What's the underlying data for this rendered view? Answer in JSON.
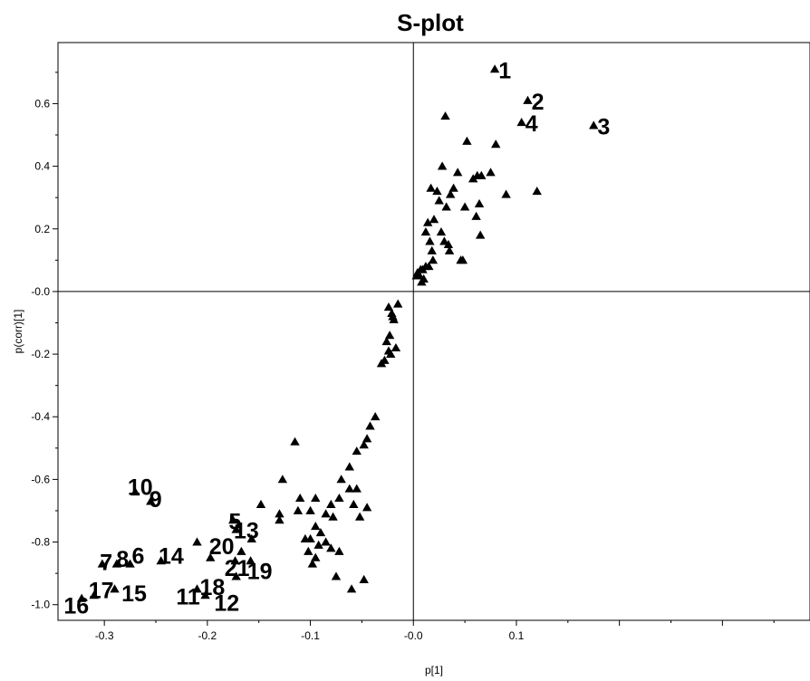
{
  "chart_data": {
    "type": "scatter",
    "title": "S-plot",
    "xlabel": "p[1]",
    "ylabel": "p(corr)[1]",
    "xlim": [
      -0.345,
      0.385
    ],
    "ylim": [
      -1.05,
      0.795
    ],
    "x_ticks": [
      -0.3,
      -0.2,
      -0.1,
      0.0,
      0.1
    ],
    "x_tick_labels": [
      "-0.3",
      "-0.2",
      "-0.1",
      "-0.0",
      "0.1"
    ],
    "y_ticks": [
      0.6,
      0.4,
      0.2,
      0.0,
      -0.2,
      -0.4,
      -0.6,
      -0.8,
      -1.0
    ],
    "y_tick_labels": [
      "0.6",
      "0.4",
      "0.2",
      "-0.0",
      "-0.2",
      "-0.4",
      "-0.6",
      "-0.8",
      "-1.0"
    ],
    "marker": "triangle",
    "marker_color": "#000000",
    "reference_lines": {
      "x": 0.0,
      "y": 0.0
    },
    "grid": false,
    "series": [
      {
        "points": [
          [
            0.079,
            0.71
          ],
          [
            0.111,
            0.61
          ],
          [
            0.175,
            0.53
          ],
          [
            0.105,
            0.54
          ],
          [
            0.12,
            0.32
          ],
          [
            0.09,
            0.31
          ],
          [
            0.08,
            0.47
          ],
          [
            0.052,
            0.48
          ],
          [
            0.075,
            0.38
          ],
          [
            0.062,
            0.37
          ],
          [
            0.066,
            0.37
          ],
          [
            0.064,
            0.28
          ],
          [
            0.065,
            0.18
          ],
          [
            0.061,
            0.24
          ],
          [
            0.058,
            0.36
          ],
          [
            0.05,
            0.27
          ],
          [
            0.043,
            0.38
          ],
          [
            0.031,
            0.56
          ],
          [
            0.028,
            0.4
          ],
          [
            0.039,
            0.33
          ],
          [
            0.023,
            0.32
          ],
          [
            0.036,
            0.31
          ],
          [
            0.025,
            0.29
          ],
          [
            0.032,
            0.27
          ],
          [
            0.017,
            0.33
          ],
          [
            0.02,
            0.23
          ],
          [
            0.014,
            0.22
          ],
          [
            0.012,
            0.19
          ],
          [
            0.016,
            0.16
          ],
          [
            0.018,
            0.13
          ],
          [
            0.019,
            0.1
          ],
          [
            0.015,
            0.08
          ],
          [
            0.012,
            0.08
          ],
          [
            0.027,
            0.19
          ],
          [
            0.03,
            0.16
          ],
          [
            0.034,
            0.15
          ],
          [
            0.035,
            0.13
          ],
          [
            0.046,
            0.1
          ],
          [
            0.048,
            0.1
          ],
          [
            0.009,
            0.07
          ],
          [
            0.007,
            0.07
          ],
          [
            0.006,
            0.05
          ],
          [
            0.01,
            0.04
          ],
          [
            0.004,
            0.06
          ],
          [
            0.003,
            0.05
          ],
          [
            0.008,
            0.03
          ],
          [
            -0.015,
            -0.04
          ],
          [
            -0.024,
            -0.05
          ],
          [
            -0.021,
            -0.07
          ],
          [
            -0.019,
            -0.09
          ],
          [
            -0.02,
            -0.08
          ],
          [
            -0.023,
            -0.14
          ],
          [
            -0.026,
            -0.16
          ],
          [
            -0.024,
            -0.19
          ],
          [
            -0.028,
            -0.22
          ],
          [
            -0.031,
            -0.23
          ],
          [
            -0.017,
            -0.18
          ],
          [
            -0.022,
            -0.2
          ],
          [
            -0.037,
            -0.4
          ],
          [
            -0.042,
            -0.43
          ],
          [
            -0.045,
            -0.47
          ],
          [
            -0.048,
            -0.49
          ],
          [
            -0.055,
            -0.51
          ],
          [
            -0.062,
            -0.56
          ],
          [
            -0.07,
            -0.6
          ],
          [
            -0.062,
            -0.63
          ],
          [
            -0.055,
            -0.63
          ],
          [
            -0.058,
            -0.68
          ],
          [
            -0.052,
            -0.72
          ],
          [
            -0.045,
            -0.69
          ],
          [
            -0.072,
            -0.66
          ],
          [
            -0.08,
            -0.68
          ],
          [
            -0.085,
            -0.71
          ],
          [
            -0.078,
            -0.72
          ],
          [
            -0.095,
            -0.66
          ],
          [
            -0.1,
            -0.7
          ],
          [
            -0.095,
            -0.75
          ],
          [
            -0.09,
            -0.77
          ],
          [
            -0.092,
            -0.81
          ],
          [
            -0.085,
            -0.8
          ],
          [
            -0.1,
            -0.79
          ],
          [
            -0.102,
            -0.83
          ],
          [
            -0.095,
            -0.85
          ],
          [
            -0.11,
            -0.66
          ],
          [
            -0.112,
            -0.7
          ],
          [
            -0.105,
            -0.79
          ],
          [
            -0.098,
            -0.87
          ],
          [
            -0.075,
            -0.91
          ],
          [
            -0.072,
            -0.83
          ],
          [
            -0.08,
            -0.82
          ],
          [
            -0.06,
            -0.95
          ],
          [
            -0.048,
            -0.92
          ],
          [
            -0.115,
            -0.48
          ],
          [
            -0.13,
            -0.71
          ],
          [
            -0.13,
            -0.73
          ],
          [
            -0.127,
            -0.6
          ],
          [
            -0.148,
            -0.68
          ],
          [
            -0.157,
            -0.79
          ],
          [
            -0.167,
            -0.83
          ],
          [
            -0.173,
            -0.86
          ],
          [
            -0.197,
            -0.85
          ],
          [
            -0.21,
            -0.8
          ],
          [
            -0.172,
            -0.91
          ],
          [
            -0.158,
            -0.86
          ],
          [
            -0.27,
            -0.64
          ],
          [
            -0.255,
            -0.67
          ],
          [
            -0.175,
            -0.73
          ],
          [
            -0.172,
            -0.76
          ],
          [
            -0.302,
            -0.87
          ],
          [
            -0.288,
            -0.87
          ],
          [
            -0.275,
            -0.87
          ],
          [
            -0.245,
            -0.86
          ],
          [
            -0.29,
            -0.95
          ],
          [
            -0.31,
            -0.97
          ],
          [
            -0.322,
            -0.98
          ],
          [
            -0.21,
            -0.95
          ],
          [
            -0.202,
            -0.97
          ]
        ]
      }
    ],
    "annotations": [
      {
        "text": "1",
        "x": 0.08,
        "y": 0.71
      },
      {
        "text": "2",
        "x": 0.112,
        "y": 0.61
      },
      {
        "text": "3",
        "x": 0.176,
        "y": 0.53
      },
      {
        "text": "4",
        "x": 0.106,
        "y": 0.54
      },
      {
        "text": "5",
        "x": -0.182,
        "y": -0.73
      },
      {
        "text": "13",
        "x": -0.177,
        "y": -0.76
      },
      {
        "text": "10",
        "x": -0.28,
        "y": -0.62
      },
      {
        "text": "9",
        "x": -0.259,
        "y": -0.66
      },
      {
        "text": "7",
        "x": -0.307,
        "y": -0.86
      },
      {
        "text": "8",
        "x": -0.291,
        "y": -0.85
      },
      {
        "text": "6",
        "x": -0.276,
        "y": -0.84
      },
      {
        "text": "14",
        "x": -0.25,
        "y": -0.84
      },
      {
        "text": "20",
        "x": -0.201,
        "y": -0.81
      },
      {
        "text": "21",
        "x": -0.186,
        "y": -0.88
      },
      {
        "text": "19",
        "x": -0.164,
        "y": -0.89
      },
      {
        "text": "18",
        "x": -0.21,
        "y": -0.94
      },
      {
        "text": "11",
        "x": -0.233,
        "y": -0.97
      },
      {
        "text": "12",
        "x": -0.196,
        "y": -0.99
      },
      {
        "text": "15",
        "x": -0.286,
        "y": -0.96
      },
      {
        "text": "17",
        "x": -0.318,
        "y": -0.95
      },
      {
        "text": "16",
        "x": -0.342,
        "y": -1.0
      }
    ]
  }
}
